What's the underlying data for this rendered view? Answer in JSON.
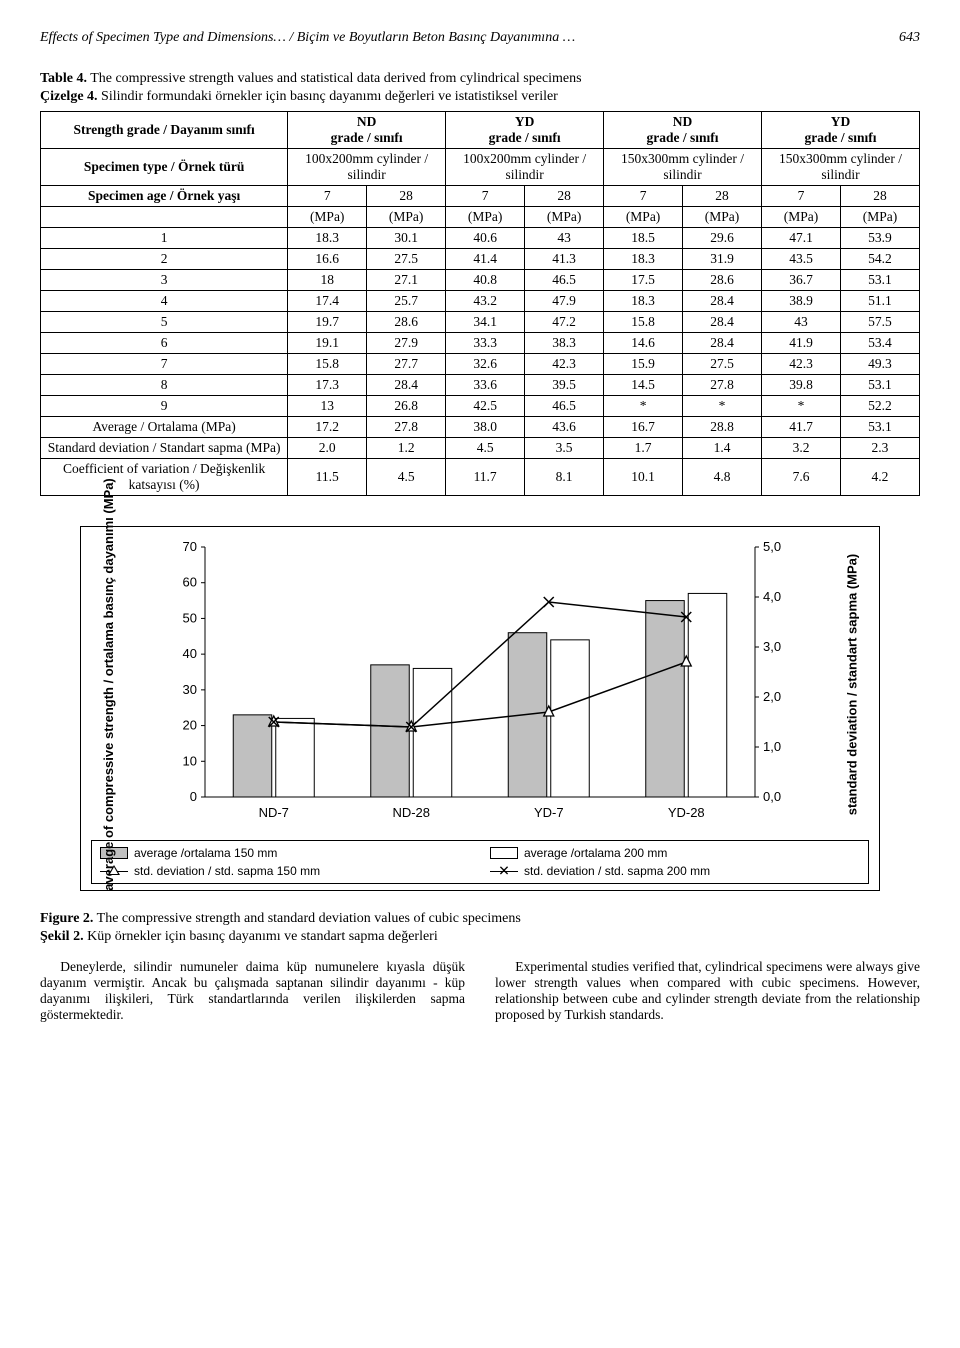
{
  "page": {
    "running_head": "Effects of Specimen Type and Dimensions… / Biçim ve Boyutların Beton Basınç Dayanımına …",
    "page_number": "643"
  },
  "table": {
    "caption_label": "Table 4.",
    "caption_text": " The compressive strength values and statistical data derived from cylindrical specimens",
    "caption_label2": "Çizelge 4.",
    "caption_text2": " Silindir formundaki örnekler için basınç dayanımı değerleri ve istatistiksel veriler",
    "h_strength": "Strength grade / Dayanım sınıfı",
    "h_type": "Specimen type / Örnek türü",
    "h_age": "Specimen age / Örnek yaşı",
    "grades": [
      "ND\ngrade / sınıfı",
      "YD\ngrade / sınıfı",
      "ND\ngrade / sınıfı",
      "YD\ngrade / sınıfı"
    ],
    "types": [
      "100x200mm cylinder / silindir",
      "100x200mm cylinder / silindir",
      "150x300mm cylinder / silindir",
      "150x300mm cylinder / silindir"
    ],
    "ages": [
      "7",
      "28",
      "7",
      "28",
      "7",
      "28",
      "7",
      "28"
    ],
    "unit_row": [
      "(MPa)",
      "(MPa)",
      "(MPa)",
      "(MPa)",
      "(MPa)",
      "(MPa)",
      "(MPa)",
      "(MPa)"
    ],
    "rows": [
      {
        "n": "1",
        "v": [
          "18.3",
          "30.1",
          "40.6",
          "43",
          "18.5",
          "29.6",
          "47.1",
          "53.9"
        ]
      },
      {
        "n": "2",
        "v": [
          "16.6",
          "27.5",
          "41.4",
          "41.3",
          "18.3",
          "31.9",
          "43.5",
          "54.2"
        ]
      },
      {
        "n": "3",
        "v": [
          "18",
          "27.1",
          "40.8",
          "46.5",
          "17.5",
          "28.6",
          "36.7",
          "53.1"
        ]
      },
      {
        "n": "4",
        "v": [
          "17.4",
          "25.7",
          "43.2",
          "47.9",
          "18.3",
          "28.4",
          "38.9",
          "51.1"
        ]
      },
      {
        "n": "5",
        "v": [
          "19.7",
          "28.6",
          "34.1",
          "47.2",
          "15.8",
          "28.4",
          "43",
          "57.5"
        ]
      },
      {
        "n": "6",
        "v": [
          "19.1",
          "27.9",
          "33.3",
          "38.3",
          "14.6",
          "28.4",
          "41.9",
          "53.4"
        ]
      },
      {
        "n": "7",
        "v": [
          "15.8",
          "27.7",
          "32.6",
          "42.3",
          "15.9",
          "27.5",
          "42.3",
          "49.3"
        ]
      },
      {
        "n": "8",
        "v": [
          "17.3",
          "28.4",
          "33.6",
          "39.5",
          "14.5",
          "27.8",
          "39.8",
          "53.1"
        ]
      },
      {
        "n": "9",
        "v": [
          "13",
          "26.8",
          "42.5",
          "46.5",
          "*",
          "*",
          "*",
          "52.2"
        ]
      }
    ],
    "avg_label": "Average / Ortalama (MPa)",
    "avg": [
      "17.2",
      "27.8",
      "38.0",
      "43.6",
      "16.7",
      "28.8",
      "41.7",
      "53.1"
    ],
    "sd_label": "Standard deviation / Standart sapma (MPa)",
    "sd": [
      "2.0",
      "1.2",
      "4.5",
      "3.5",
      "1.7",
      "1.4",
      "3.2",
      "2.3"
    ],
    "cv_label": "Coefficient of variation / Değişkenlik katsayısı (%)",
    "cv": [
      "11.5",
      "4.5",
      "11.7",
      "8.1",
      "10.1",
      "4.8",
      "7.6",
      "4.2"
    ]
  },
  "chart": {
    "left_axis_label": "average of compressive strength / ortalama basınç dayanımı (MPa)",
    "right_axis_label": "standard deviation / standart sapma (MPa)",
    "categories": [
      "ND-7",
      "ND-28",
      "YD-7",
      "YD-28"
    ],
    "left_ticks": [
      0,
      10,
      20,
      30,
      40,
      50,
      60,
      70
    ],
    "right_ticks": [
      "0,0",
      "1,0",
      "2,0",
      "3,0",
      "4,0",
      "5,0"
    ],
    "left_max": 70,
    "right_max": 5.0,
    "bars150": [
      23,
      37,
      46,
      55
    ],
    "bars200": [
      22,
      36,
      44,
      57
    ],
    "line150": [
      1.5,
      1.4,
      1.7,
      2.7
    ],
    "line200": [
      1.5,
      1.4,
      3.9,
      3.6
    ],
    "bar150_fill": "#c0c0c0",
    "bar200_fill": "#ffffff",
    "bar_stroke": "#000000",
    "line_color": "#000000",
    "legend": {
      "a150": "average /ortalama 150 mm",
      "a200": "average /ortalama 200 mm",
      "s150": "std. deviation / std. sapma 150 mm",
      "s200": "std. deviation / std. sapma 200 mm"
    }
  },
  "figure": {
    "label": "Figure 2.",
    "text": " The compressive strength and standard deviation values of cubic specimens",
    "label2": "Şekil 2.",
    "text2": " Küp örnekler için basınç dayanımı ve standart sapma değerleri"
  },
  "body": {
    "col1": "Deneylerde, silindir numuneler daima küp numunelere kıyasla düşük dayanım vermiştir. Ancak bu çalışmada saptanan silindir dayanımı - küp dayanımı ilişkileri, Türk standartlarında verilen ilişkilerden sapma göstermektedir.",
    "col2": "Experimental studies verified that, cylindrical specimens were always give lower strength values when compared with cubic specimens. However, relationship between cube and cylinder strength deviate from the relationship proposed by Turkish standards."
  }
}
